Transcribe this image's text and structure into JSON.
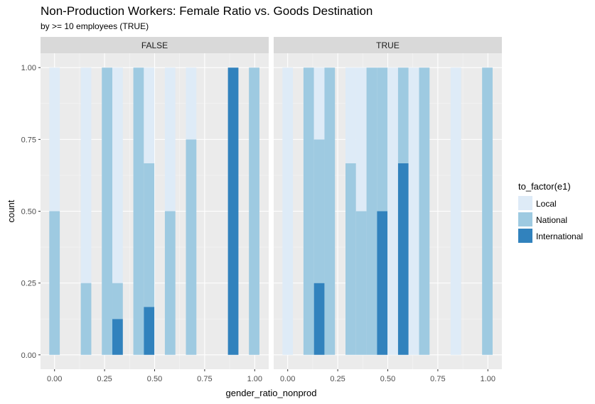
{
  "title": "Non-Production Workers: Female Ratio vs. Goods Destination",
  "subtitle": "by >= 10 employees (TRUE)",
  "chart_data": {
    "type": "bar",
    "position": "fill",
    "facet_labels": [
      "FALSE",
      "TRUE"
    ],
    "xlabel": "gender_ratio_nonprod",
    "ylabel": "count",
    "xlim": [
      -0.07,
      1.07
    ],
    "ylim": [
      -0.05,
      1.05
    ],
    "x_ticks": [
      0,
      0.25,
      0.5,
      0.75,
      1
    ],
    "x_tick_labels": [
      "0.00",
      "0.25",
      "0.50",
      "0.75",
      "1.00"
    ],
    "y_ticks": [
      0,
      0.25,
      0.5,
      0.75,
      1
    ],
    "y_tick_labels": [
      "0.00",
      "0.25",
      "0.50",
      "0.75",
      "1.00"
    ],
    "grid": true,
    "bin_width": 0.0525,
    "legend": {
      "title": "to_factor(e1)",
      "placement": "right",
      "items": [
        {
          "label": "Local",
          "color": "#deebf7"
        },
        {
          "label": "National",
          "color": "#9ecae1"
        },
        {
          "label": "International",
          "color": "#3182bd"
        }
      ]
    },
    "panels": [
      {
        "facet": "FALSE",
        "bars": [
          {
            "x": 0.0,
            "Local": 0.5,
            "National": 0.5,
            "International": 0
          },
          {
            "x": 0.1575,
            "Local": 0.75,
            "National": 0.25,
            "International": 0
          },
          {
            "x": 0.21,
            "Local": 0,
            "National": 0,
            "International": 0
          },
          {
            "x": 0.2625,
            "Local": 0,
            "National": 1,
            "International": 0
          },
          {
            "x": 0.315,
            "Local": 0.75,
            "National": 0.125,
            "International": 0.125
          },
          {
            "x": 0.42,
            "Local": 0,
            "National": 1,
            "International": 0
          },
          {
            "x": 0.4725,
            "Local": 0.333,
            "National": 0.5,
            "International": 0.167
          },
          {
            "x": 0.5775,
            "Local": 0.5,
            "National": 0.5,
            "International": 0
          },
          {
            "x": 0.6825,
            "Local": 0.25,
            "National": 0.75,
            "International": 0
          },
          {
            "x": 0.8925,
            "Local": 0,
            "National": 0,
            "International": 1
          },
          {
            "x": 0.9975,
            "Local": 0,
            "National": 1,
            "International": 0
          }
        ]
      },
      {
        "facet": "TRUE",
        "bars": [
          {
            "x": 0.0,
            "Local": 1,
            "National": 0,
            "International": 0
          },
          {
            "x": 0.105,
            "Local": 0,
            "National": 1,
            "International": 0
          },
          {
            "x": 0.1575,
            "Local": 0.25,
            "National": 0.5,
            "International": 0.25
          },
          {
            "x": 0.21,
            "Local": 0,
            "National": 1,
            "International": 0
          },
          {
            "x": 0.315,
            "Local": 0.333,
            "National": 0.667,
            "International": 0
          },
          {
            "x": 0.3675,
            "Local": 0.5,
            "National": 0.5,
            "International": 0
          },
          {
            "x": 0.42,
            "Local": 0,
            "National": 1,
            "International": 0
          },
          {
            "x": 0.4725,
            "Local": 0,
            "National": 0.5,
            "International": 0.5
          },
          {
            "x": 0.525,
            "Local": 1,
            "National": 0,
            "International": 0
          },
          {
            "x": 0.5775,
            "Local": 0,
            "National": 0.333,
            "International": 0.667
          },
          {
            "x": 0.63,
            "Local": 1,
            "National": 0,
            "International": 0
          },
          {
            "x": 0.6825,
            "Local": 0,
            "National": 1,
            "International": 0
          },
          {
            "x": 0.84,
            "Local": 1,
            "National": 0,
            "International": 0
          },
          {
            "x": 0.9975,
            "Local": 0,
            "National": 1,
            "International": 0
          }
        ]
      }
    ]
  }
}
